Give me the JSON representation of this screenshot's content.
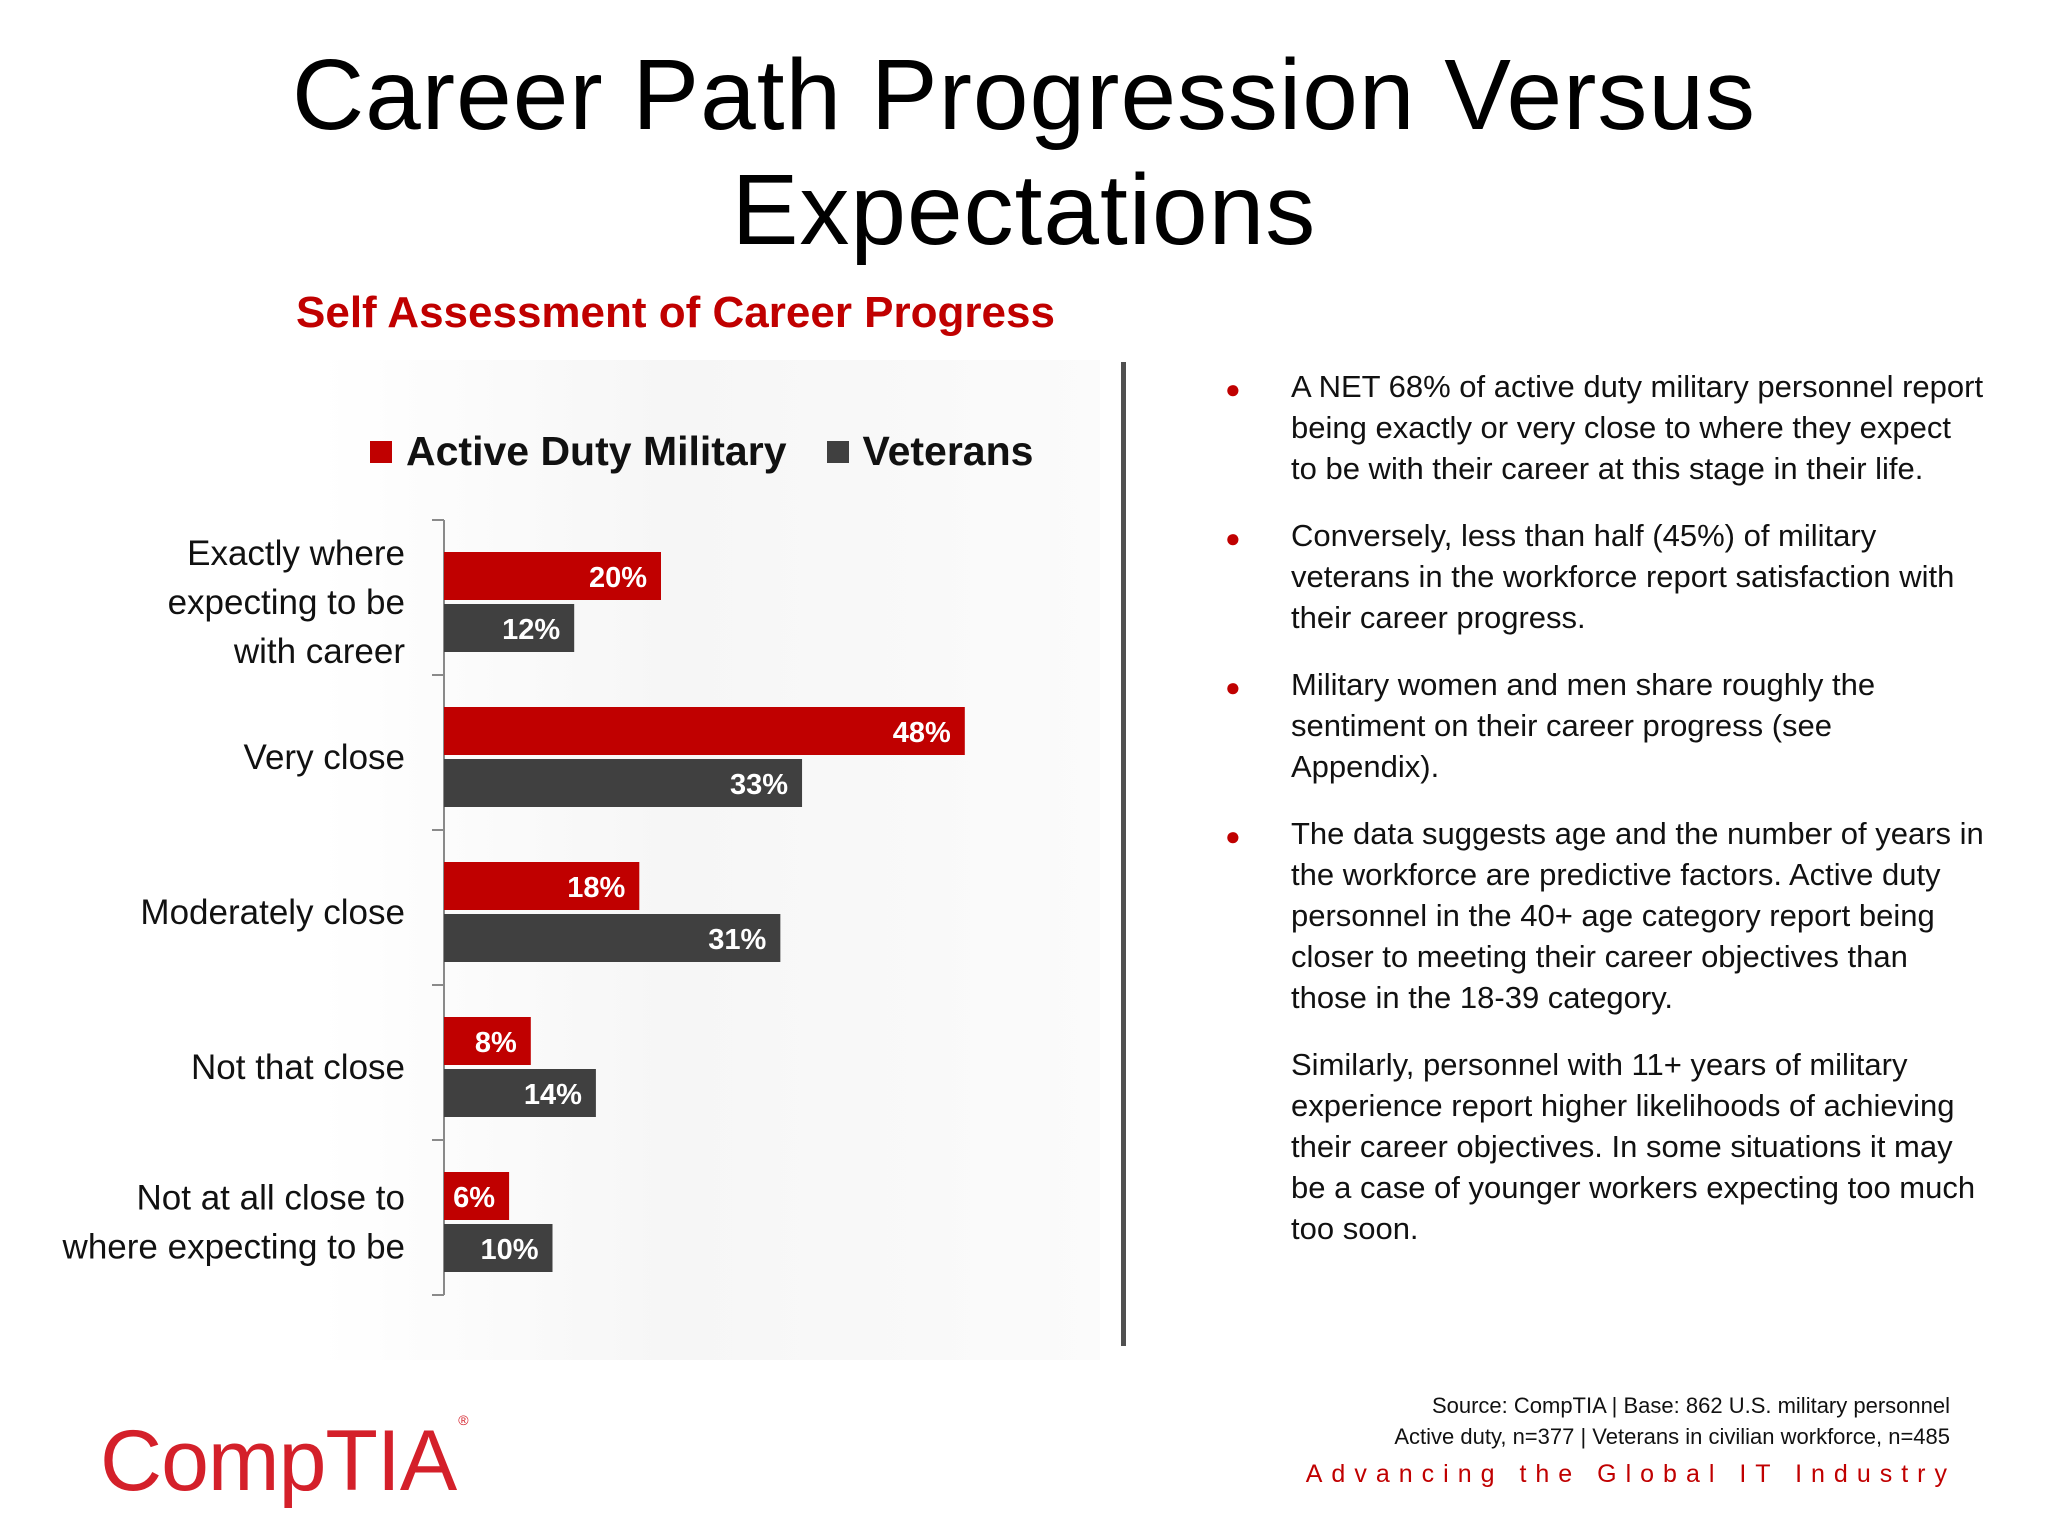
{
  "slide": {
    "title": "Career Path Progression Versus Expectations"
  },
  "chart_data": {
    "type": "bar",
    "orientation": "horizontal",
    "title": "Self Assessment of Career Progress",
    "categories": [
      "Exactly where expecting to be with career",
      "Very close",
      "Moderately close",
      "Not that close",
      "Not at all close to where expecting to be"
    ],
    "category_lines": [
      [
        "Exactly where",
        "expecting to be",
        "with career"
      ],
      [
        "Very close"
      ],
      [
        "Moderately close"
      ],
      [
        "Not that close"
      ],
      [
        "Not at all close to",
        "where expecting to be"
      ]
    ],
    "series": [
      {
        "name": "Active Duty Military",
        "values": [
          20,
          48,
          18,
          8,
          6
        ],
        "color": "#c00000"
      },
      {
        "name": "Veterans",
        "values": [
          12,
          33,
          31,
          14,
          10
        ],
        "color": "#404040"
      }
    ],
    "value_suffix": "%",
    "legend_position": "top",
    "grid": false,
    "xlim": [
      0,
      50
    ]
  },
  "bullets": [
    "A NET 68% of active duty military personnel report being exactly or very close to where they expect to be with their career at this stage in their life.",
    "Conversely, less than half (45%) of military veterans in the workforce report satisfaction with their career progress.",
    "Military women and men share roughly the sentiment on their career progress (see Appendix).",
    "The data suggests age and the number of years in the workforce are predictive  factors. Active duty personnel in the 40+ age category report being closer to meeting their career objectives than those in the 18-39 category."
  ],
  "paragraph": "Similarly, personnel with 11+ years of military experience report higher likelihoods of achieving their career objectives. In some situations it may be a case of younger workers expecting too much too soon.",
  "source": {
    "line1": "Source: CompTIA | Base: 862 U.S. military personnel",
    "line2": "Active duty, n=377 | Veterans in civilian workforce, n=485"
  },
  "tagline": "Advancing the Global IT Industry",
  "logo": {
    "text": "CompTIA",
    "mark": "®"
  },
  "colors": {
    "accent": "#c00000",
    "series_dark": "#404040"
  }
}
